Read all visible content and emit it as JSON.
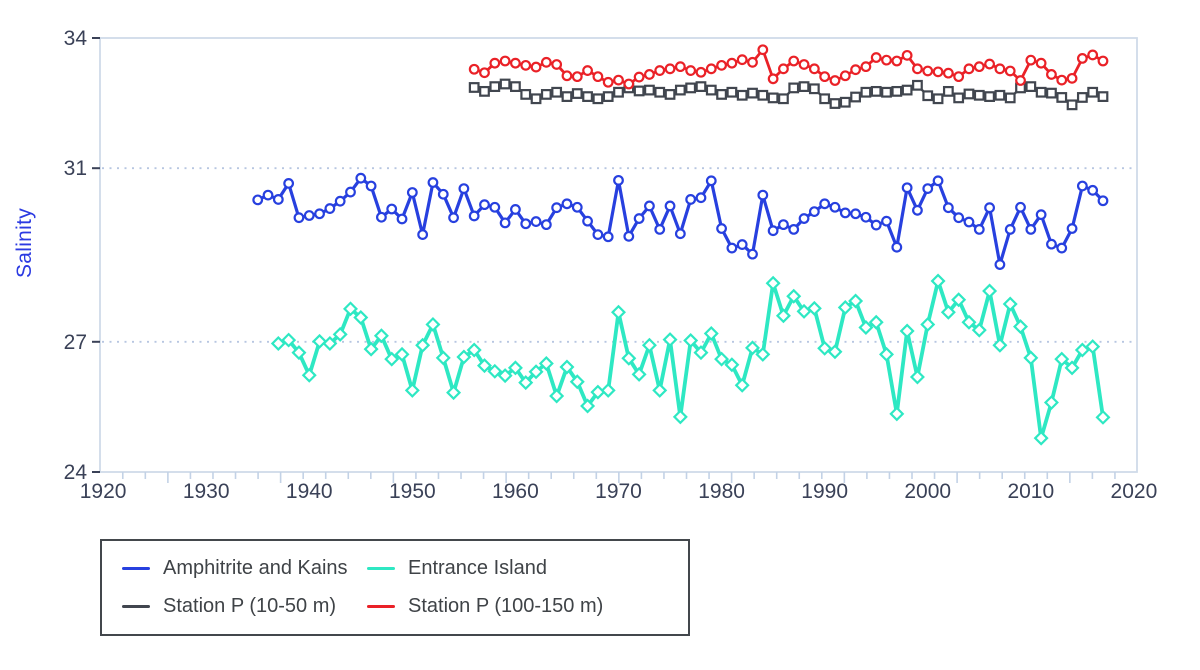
{
  "chart_data": {
    "type": "line",
    "title": "",
    "xlabel": "",
    "ylabel": "Salinity",
    "xlim": [
      1919.7,
      2020.3
    ],
    "ylim": [
      24,
      34
    ],
    "x_ticks": [
      1920,
      1930,
      1940,
      1950,
      1960,
      1970,
      1980,
      1990,
      2000,
      2010,
      2020
    ],
    "y_ticks": [
      24,
      27,
      31,
      34
    ],
    "grid_y": [
      27,
      31
    ],
    "x_minor": {
      "start": 1921.91,
      "step": 2.1875,
      "tall_period": 5,
      "tall_index": 2
    },
    "legend_position": "bottom-left",
    "grid": "dotted horizontal at 27 and 31",
    "colors": {
      "frame": "#cfdbe9",
      "grid": "#b7c6e1",
      "minor_tick": "#c3d2e6",
      "tick_label": "#3a4157",
      "axis_title_blue": "#2b3ae2",
      "legend_border": "#43474c",
      "legend_text": "#3f4347"
    },
    "draw_order": [
      2,
      3,
      0,
      1
    ],
    "series": [
      {
        "name": "Amphitrite and Kains",
        "color": "#2740df",
        "marker": "circle",
        "line_width": 3.2,
        "points": [
          [
            1935,
            30.27
          ],
          [
            1936,
            30.38
          ],
          [
            1937,
            30.28
          ],
          [
            1938,
            30.65
          ],
          [
            1939,
            29.86
          ],
          [
            1940,
            29.91
          ],
          [
            1941,
            29.95
          ],
          [
            1942,
            30.07
          ],
          [
            1943,
            30.24
          ],
          [
            1944,
            30.45
          ],
          [
            1945,
            30.77
          ],
          [
            1946,
            30.59
          ],
          [
            1947,
            29.87
          ],
          [
            1948,
            30.06
          ],
          [
            1949,
            29.83
          ],
          [
            1950,
            30.44
          ],
          [
            1951,
            29.47
          ],
          [
            1952,
            30.67
          ],
          [
            1953,
            30.4
          ],
          [
            1954,
            29.86
          ],
          [
            1955,
            30.53
          ],
          [
            1956,
            29.9
          ],
          [
            1957,
            30.16
          ],
          [
            1958,
            30.1
          ],
          [
            1959,
            29.74
          ],
          [
            1960,
            30.05
          ],
          [
            1961,
            29.72
          ],
          [
            1962,
            29.77
          ],
          [
            1963,
            29.7
          ],
          [
            1964,
            30.09
          ],
          [
            1965,
            30.18
          ],
          [
            1966,
            30.1
          ],
          [
            1967,
            29.78
          ],
          [
            1968,
            29.47
          ],
          [
            1969,
            29.42
          ],
          [
            1970,
            30.72
          ],
          [
            1971,
            29.43
          ],
          [
            1972,
            29.84
          ],
          [
            1973,
            30.13
          ],
          [
            1974,
            29.59
          ],
          [
            1975,
            30.13
          ],
          [
            1976,
            29.49
          ],
          [
            1977,
            30.28
          ],
          [
            1978,
            30.32
          ],
          [
            1979,
            30.71
          ],
          [
            1980,
            29.61
          ],
          [
            1981,
            29.16
          ],
          [
            1982,
            29.24
          ],
          [
            1983,
            29.02
          ],
          [
            1984,
            30.38
          ],
          [
            1985,
            29.56
          ],
          [
            1986,
            29.7
          ],
          [
            1987,
            29.59
          ],
          [
            1988,
            29.84
          ],
          [
            1989,
            30.0
          ],
          [
            1990,
            30.18
          ],
          [
            1991,
            30.1
          ],
          [
            1992,
            29.97
          ],
          [
            1993,
            29.95
          ],
          [
            1994,
            29.87
          ],
          [
            1995,
            29.69
          ],
          [
            1996,
            29.78
          ],
          [
            1997,
            29.18
          ],
          [
            1998,
            30.55
          ],
          [
            1999,
            30.03
          ],
          [
            2000,
            30.53
          ],
          [
            2001,
            30.71
          ],
          [
            2002,
            30.09
          ],
          [
            2003,
            29.86
          ],
          [
            2004,
            29.76
          ],
          [
            2005,
            29.59
          ],
          [
            2006,
            30.09
          ],
          [
            2007,
            28.78
          ],
          [
            2008,
            29.59
          ],
          [
            2009,
            30.1
          ],
          [
            2010,
            29.59
          ],
          [
            2011,
            29.93
          ],
          [
            2012,
            29.25
          ],
          [
            2013,
            29.16
          ],
          [
            2014,
            29.61
          ],
          [
            2015,
            30.59
          ],
          [
            2016,
            30.49
          ],
          [
            2017,
            30.25
          ]
        ]
      },
      {
        "name": "Entrance Island",
        "color": "#2ee8c3",
        "marker": "diamond",
        "line_width": 3.8,
        "points": [
          [
            1937,
            26.96
          ],
          [
            1938,
            27.04
          ],
          [
            1939,
            26.75
          ],
          [
            1940,
            26.23
          ],
          [
            1941,
            27.01
          ],
          [
            1942,
            26.96
          ],
          [
            1943,
            27.17
          ],
          [
            1944,
            27.76
          ],
          [
            1945,
            27.56
          ],
          [
            1946,
            26.83
          ],
          [
            1947,
            27.14
          ],
          [
            1948,
            26.6
          ],
          [
            1949,
            26.71
          ],
          [
            1950,
            25.88
          ],
          [
            1951,
            26.92
          ],
          [
            1952,
            27.4
          ],
          [
            1953,
            26.63
          ],
          [
            1954,
            25.83
          ],
          [
            1955,
            26.65
          ],
          [
            1956,
            26.81
          ],
          [
            1957,
            26.45
          ],
          [
            1958,
            26.32
          ],
          [
            1959,
            26.22
          ],
          [
            1960,
            26.4
          ],
          [
            1961,
            26.06
          ],
          [
            1962,
            26.31
          ],
          [
            1963,
            26.5
          ],
          [
            1964,
            25.75
          ],
          [
            1965,
            26.42
          ],
          [
            1966,
            26.08
          ],
          [
            1967,
            25.52
          ],
          [
            1968,
            25.84
          ],
          [
            1969,
            25.88
          ],
          [
            1970,
            27.68
          ],
          [
            1971,
            26.62
          ],
          [
            1972,
            26.25
          ],
          [
            1973,
            26.92
          ],
          [
            1974,
            25.88
          ],
          [
            1975,
            27.05
          ],
          [
            1976,
            25.27
          ],
          [
            1977,
            27.03
          ],
          [
            1978,
            26.75
          ],
          [
            1979,
            27.19
          ],
          [
            1980,
            26.6
          ],
          [
            1981,
            26.47
          ],
          [
            1982,
            26.0
          ],
          [
            1983,
            26.86
          ],
          [
            1984,
            26.71
          ],
          [
            1985,
            28.35
          ],
          [
            1986,
            27.6
          ],
          [
            1987,
            28.05
          ],
          [
            1988,
            27.7
          ],
          [
            1989,
            27.77
          ],
          [
            1990,
            26.85
          ],
          [
            1991,
            26.77
          ],
          [
            1992,
            27.79
          ],
          [
            1993,
            27.94
          ],
          [
            1994,
            27.33
          ],
          [
            1995,
            27.45
          ],
          [
            1996,
            26.71
          ],
          [
            1997,
            25.34
          ],
          [
            1998,
            27.25
          ],
          [
            1999,
            26.19
          ],
          [
            2000,
            27.4
          ],
          [
            2001,
            28.4
          ],
          [
            2002,
            27.68
          ],
          [
            2003,
            27.97
          ],
          [
            2004,
            27.45
          ],
          [
            2005,
            27.27
          ],
          [
            2006,
            28.17
          ],
          [
            2007,
            26.92
          ],
          [
            2008,
            27.87
          ],
          [
            2009,
            27.35
          ],
          [
            2010,
            26.63
          ],
          [
            2011,
            24.78
          ],
          [
            2012,
            25.6
          ],
          [
            2013,
            26.6
          ],
          [
            2014,
            26.4
          ],
          [
            2015,
            26.81
          ],
          [
            2016,
            26.89
          ],
          [
            2017,
            25.26
          ]
        ]
      },
      {
        "name": "Station P (10-50 m)",
        "color": "#41464f",
        "marker": "square",
        "line_width": 2.4,
        "points": [
          [
            1956,
            32.86
          ],
          [
            1957,
            32.77
          ],
          [
            1958,
            32.88
          ],
          [
            1959,
            32.94
          ],
          [
            1960,
            32.88
          ],
          [
            1961,
            32.7
          ],
          [
            1962,
            32.6
          ],
          [
            1963,
            32.7
          ],
          [
            1964,
            32.75
          ],
          [
            1965,
            32.65
          ],
          [
            1966,
            32.72
          ],
          [
            1967,
            32.65
          ],
          [
            1968,
            32.6
          ],
          [
            1969,
            32.65
          ],
          [
            1970,
            32.75
          ],
          [
            1971,
            32.85
          ],
          [
            1972,
            32.78
          ],
          [
            1973,
            32.8
          ],
          [
            1974,
            32.75
          ],
          [
            1975,
            32.7
          ],
          [
            1976,
            32.8
          ],
          [
            1977,
            32.85
          ],
          [
            1978,
            32.88
          ],
          [
            1979,
            32.8
          ],
          [
            1980,
            32.7
          ],
          [
            1981,
            32.75
          ],
          [
            1982,
            32.68
          ],
          [
            1983,
            32.73
          ],
          [
            1984,
            32.68
          ],
          [
            1985,
            32.62
          ],
          [
            1986,
            32.6
          ],
          [
            1987,
            32.85
          ],
          [
            1988,
            32.88
          ],
          [
            1989,
            32.83
          ],
          [
            1990,
            32.6
          ],
          [
            1991,
            32.49
          ],
          [
            1992,
            32.52
          ],
          [
            1993,
            32.64
          ],
          [
            1994,
            32.75
          ],
          [
            1995,
            32.77
          ],
          [
            1996,
            32.75
          ],
          [
            1997,
            32.77
          ],
          [
            1998,
            32.8
          ],
          [
            1999,
            32.91
          ],
          [
            2000,
            32.67
          ],
          [
            2001,
            32.6
          ],
          [
            2002,
            32.77
          ],
          [
            2003,
            32.62
          ],
          [
            2004,
            32.71
          ],
          [
            2005,
            32.68
          ],
          [
            2006,
            32.65
          ],
          [
            2007,
            32.68
          ],
          [
            2008,
            32.62
          ],
          [
            2009,
            32.85
          ],
          [
            2010,
            32.88
          ],
          [
            2011,
            32.75
          ],
          [
            2012,
            32.73
          ],
          [
            2013,
            32.63
          ],
          [
            2014,
            32.46
          ],
          [
            2015,
            32.63
          ],
          [
            2016,
            32.75
          ],
          [
            2017,
            32.65
          ]
        ]
      },
      {
        "name": "Station P (100-150 m)",
        "color": "#ea2127",
        "marker": "circle",
        "line_width": 2.8,
        "points": [
          [
            1956,
            33.28
          ],
          [
            1957,
            33.2
          ],
          [
            1958,
            33.42
          ],
          [
            1959,
            33.47
          ],
          [
            1960,
            33.42
          ],
          [
            1961,
            33.37
          ],
          [
            1962,
            33.33
          ],
          [
            1963,
            33.44
          ],
          [
            1964,
            33.39
          ],
          [
            1965,
            33.13
          ],
          [
            1966,
            33.11
          ],
          [
            1967,
            33.25
          ],
          [
            1968,
            33.11
          ],
          [
            1969,
            32.98
          ],
          [
            1970,
            33.03
          ],
          [
            1971,
            32.94
          ],
          [
            1972,
            33.1
          ],
          [
            1973,
            33.16
          ],
          [
            1974,
            33.25
          ],
          [
            1975,
            33.29
          ],
          [
            1976,
            33.34
          ],
          [
            1977,
            33.25
          ],
          [
            1978,
            33.21
          ],
          [
            1979,
            33.29
          ],
          [
            1980,
            33.37
          ],
          [
            1981,
            33.42
          ],
          [
            1982,
            33.5
          ],
          [
            1983,
            33.44
          ],
          [
            1984,
            33.73
          ],
          [
            1985,
            33.06
          ],
          [
            1986,
            33.29
          ],
          [
            1987,
            33.47
          ],
          [
            1988,
            33.39
          ],
          [
            1989,
            33.29
          ],
          [
            1990,
            33.11
          ],
          [
            1991,
            33.02
          ],
          [
            1992,
            33.13
          ],
          [
            1993,
            33.27
          ],
          [
            1994,
            33.34
          ],
          [
            1995,
            33.55
          ],
          [
            1996,
            33.49
          ],
          [
            1997,
            33.47
          ],
          [
            1998,
            33.6
          ],
          [
            1999,
            33.29
          ],
          [
            2000,
            33.24
          ],
          [
            2001,
            33.22
          ],
          [
            2002,
            33.19
          ],
          [
            2003,
            33.11
          ],
          [
            2004,
            33.29
          ],
          [
            2005,
            33.34
          ],
          [
            2006,
            33.4
          ],
          [
            2007,
            33.29
          ],
          [
            2008,
            33.24
          ],
          [
            2009,
            33.02
          ],
          [
            2010,
            33.49
          ],
          [
            2011,
            33.42
          ],
          [
            2012,
            33.16
          ],
          [
            2013,
            33.03
          ],
          [
            2014,
            33.07
          ],
          [
            2015,
            33.53
          ],
          [
            2016,
            33.61
          ],
          [
            2017,
            33.47
          ]
        ]
      }
    ]
  }
}
